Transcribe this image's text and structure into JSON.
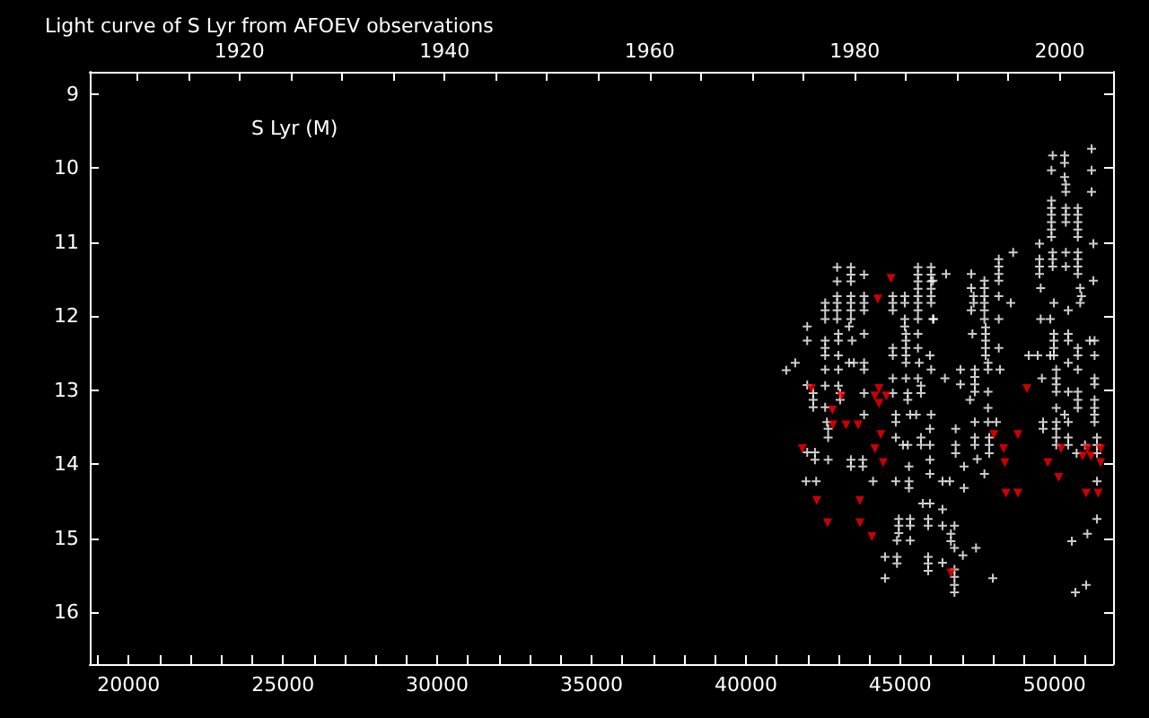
{
  "chart_data": {
    "type": "scatter",
    "title": "Light curve of S Lyr from AFOEV observations",
    "annotations": [
      "S Lyr (M)"
    ],
    "xlim": [
      18740,
      51900
    ],
    "ylim": [
      16.7,
      8.7
    ],
    "x2lim": [
      1905.4,
      2005.2
    ],
    "xticks": [
      {
        "value": 19000,
        "label": null
      },
      20000,
      {
        "value": 21000,
        "label": null
      },
      {
        "value": 22000,
        "label": null
      },
      {
        "value": 23000,
        "label": null
      },
      {
        "value": 24000,
        "label": null
      },
      25000,
      {
        "value": 26000,
        "label": null
      },
      {
        "value": 27000,
        "label": null
      },
      {
        "value": 28000,
        "label": null
      },
      {
        "value": 29000,
        "label": null
      },
      30000,
      {
        "value": 31000,
        "label": null
      },
      {
        "value": 32000,
        "label": null
      },
      {
        "value": 33000,
        "label": null
      },
      {
        "value": 34000,
        "label": null
      },
      35000,
      {
        "value": 36000,
        "label": null
      },
      {
        "value": 37000,
        "label": null
      },
      {
        "value": 38000,
        "label": null
      },
      {
        "value": 39000,
        "label": null
      },
      40000,
      {
        "value": 41000,
        "label": null
      },
      {
        "value": 42000,
        "label": null
      },
      {
        "value": 43000,
        "label": null
      },
      {
        "value": 44000,
        "label": null
      },
      45000,
      {
        "value": 46000,
        "label": null
      },
      {
        "value": 47000,
        "label": null
      },
      {
        "value": 48000,
        "label": null
      },
      {
        "value": 49000,
        "label": null
      },
      50000,
      {
        "value": 51000,
        "label": null
      }
    ],
    "x2ticks": [
      {
        "value": 1910,
        "label": null
      },
      {
        "value": 1915,
        "label": null
      },
      1920,
      {
        "value": 1925,
        "label": null
      },
      {
        "value": 1930,
        "label": null
      },
      {
        "value": 1935,
        "label": null
      },
      1940,
      {
        "value": 1945,
        "label": null
      },
      {
        "value": 1950,
        "label": null
      },
      {
        "value": 1955,
        "label": null
      },
      1960,
      {
        "value": 1965,
        "label": null
      },
      {
        "value": 1970,
        "label": null
      },
      {
        "value": 1975,
        "label": null
      },
      1980,
      {
        "value": 1985,
        "label": null
      },
      {
        "value": 1990,
        "label": null
      },
      {
        "value": 1995,
        "label": null
      },
      2000
    ],
    "yticks": [
      9,
      10,
      11,
      12,
      13,
      14,
      15,
      16
    ],
    "grid": false,
    "series": [
      {
        "color": "#ffffff",
        "marker": "cross",
        "x": [
          41309,
          41600,
          41988,
          41988,
          41988,
          42182,
          42182,
          42182,
          41988,
          41949,
          42279,
          42240,
          42240,
          42570,
          42570,
          42570,
          42570,
          42570,
          42570,
          42570,
          42570,
          42570,
          42628,
          42667,
          42667,
          42667,
          42958,
          42958,
          42958,
          42958,
          42958,
          42958,
          42997,
          42997,
          42997,
          42997,
          42997,
          43055,
          43055,
          43404,
          43404,
          43404,
          43404,
          43404,
          43404,
          43404,
          43404,
          43404,
          43346,
          43443,
          43346,
          43501,
          43831,
          43831,
          43831,
          43831,
          43831,
          43831,
          43831,
          43831,
          43831,
          43792,
          43792,
          44122,
          44762,
          44762,
          44762,
          44762,
          44762,
          44762,
          44762,
          44859,
          44859,
          44859,
          44859,
          45092,
          45247,
          45286,
          45286,
          45286,
          44510,
          44510,
          44898,
          44898,
          45150,
          45150,
          45150,
          45150,
          45189,
          45189,
          45189,
          45189,
          45189,
          45189,
          45247,
          45247,
          45325,
          45325,
          45325,
          45325,
          44956,
          44956,
          44956,
          44898,
          45577,
          45577,
          45577,
          45577,
          45577,
          45577,
          45577,
          45577,
          45577,
          45577,
          45577,
          45616,
          45674,
          45674,
          45519,
          45674,
          45674,
          45732,
          45965,
          45907,
          45907,
          45907,
          45907,
          45907,
          46004,
          46004,
          46004,
          46004,
          46004,
          46004,
          46004,
          46004,
          46081,
          45965,
          45965,
          45965,
          45965,
          45965,
          49942,
          50330,
          51203,
          51203,
          49903,
          50330,
          50330,
          50369,
          50369,
          51203,
          49903,
          49903,
          49903,
          49903,
          49903,
          49903,
          50369,
          50369,
          50369,
          50757,
          50757,
          50757,
          50757,
          50757,
          49515,
          49942,
          50369,
          50757,
          49515,
          49515,
          49515,
          49942,
          49942,
          50369,
          50757,
          50757,
          50757,
          51261,
          51261,
          48662,
          48196,
          48196,
          48196,
          48196,
          48196,
          48584,
          47730,
          47730,
          47730,
          47730,
          47730,
          47730,
          47304,
          47304,
          47381,
          47381,
          47304,
          46489,
          46062,
          46062,
          47769,
          47769,
          47769,
          47769,
          47769,
          48196,
          48196,
          47847,
          47342,
          46954,
          47420,
          47420,
          47420,
          47420,
          46954,
          46450,
          47847,
          48235,
          49554,
          49864,
          49554,
          49981,
          50446,
          50834,
          50834,
          50873,
          49981,
          49981,
          49981,
          49981,
          50446,
          50446,
          50757,
          50757,
          49166,
          49457,
          49864,
          50446,
          50757,
          50058,
          50058,
          50058,
          50058,
          50058,
          49593,
          50446,
          50757,
          50757,
          50330,
          50757,
          51145,
          51300,
          51300,
          51300,
          51300,
          51300,
          51300,
          51300,
          51300,
          47847,
          47847,
          47847,
          47265,
          47420,
          48118,
          46799,
          47420,
          47420,
          47886,
          47886,
          47886,
          47498,
          47071,
          47730,
          46799,
          46799,
          46372,
          46605,
          47071,
          46372,
          46372,
          46760,
          46644,
          46644,
          46760,
          47032,
          47459,
          46372,
          46760,
          46760,
          46760,
          46760,
          48002,
          49632,
          49632,
          50058,
          50058,
          50058,
          50058,
          50446,
          50446,
          50446,
          51378,
          51378,
          51378,
          51378,
          51378,
          50990,
          50718,
          51067,
          50563,
          51028,
          50679
        ],
        "values": [
          12.73,
          12.63,
          12.14,
          12.33,
          12.93,
          13.04,
          13.13,
          13.23,
          13.84,
          14.23,
          14.23,
          13.94,
          13.84,
          11.82,
          11.92,
          12.04,
          12.33,
          12.43,
          12.53,
          12.72,
          12.94,
          13.23,
          13.43,
          13.52,
          13.64,
          13.94,
          11.34,
          11.53,
          11.73,
          11.82,
          11.92,
          12.04,
          12.24,
          12.33,
          12.53,
          12.72,
          12.94,
          13.04,
          13.13,
          11.34,
          11.44,
          11.53,
          11.73,
          11.82,
          11.92,
          12.04,
          13.94,
          14.03,
          12.14,
          12.33,
          12.63,
          12.63,
          11.44,
          11.73,
          11.82,
          11.92,
          12.24,
          12.63,
          12.72,
          13.04,
          13.33,
          13.94,
          14.03,
          14.23,
          11.73,
          11.82,
          11.92,
          12.43,
          12.53,
          12.84,
          13.04,
          13.33,
          13.43,
          13.64,
          14.23,
          13.74,
          13.74,
          14.03,
          14.23,
          14.32,
          15.25,
          15.54,
          15.25,
          15.34,
          11.73,
          11.82,
          12.04,
          12.14,
          12.24,
          12.33,
          12.43,
          12.53,
          12.63,
          12.84,
          13.04,
          13.13,
          13.33,
          14.74,
          14.83,
          15.03,
          14.74,
          14.83,
          14.93,
          15.03,
          11.34,
          11.44,
          11.53,
          11.63,
          11.73,
          11.82,
          11.92,
          12.04,
          12.24,
          12.43,
          12.84,
          12.63,
          12.94,
          13.04,
          13.33,
          13.64,
          13.74,
          14.53,
          14.53,
          14.74,
          14.83,
          15.25,
          15.34,
          15.44,
          11.34,
          11.44,
          11.53,
          11.63,
          11.73,
          11.82,
          12.72,
          13.33,
          12.04,
          12.53,
          13.52,
          13.74,
          13.94,
          14.13,
          9.83,
          9.83,
          9.74,
          10.03,
          10.03,
          9.93,
          10.12,
          10.22,
          10.32,
          10.32,
          10.44,
          10.54,
          10.63,
          10.73,
          10.83,
          10.93,
          10.54,
          10.63,
          10.73,
          10.54,
          10.63,
          10.73,
          10.83,
          10.93,
          11.02,
          11.14,
          11.14,
          11.14,
          11.23,
          11.33,
          11.43,
          11.23,
          11.33,
          11.33,
          11.23,
          11.33,
          11.43,
          11.02,
          11.52,
          11.14,
          11.23,
          11.33,
          11.43,
          11.52,
          11.73,
          11.82,
          11.52,
          11.62,
          11.73,
          11.82,
          11.92,
          12.04,
          11.43,
          11.62,
          11.73,
          11.82,
          11.92,
          11.43,
          11.52,
          12.04,
          12.15,
          12.24,
          12.33,
          12.43,
          12.53,
          12.04,
          12.43,
          12.63,
          12.24,
          12.72,
          12.72,
          12.82,
          12.92,
          13.02,
          12.92,
          12.84,
          12.72,
          12.72,
          12.04,
          12.04,
          11.62,
          11.82,
          11.92,
          11.82,
          11.62,
          11.73,
          12.24,
          12.33,
          12.43,
          12.53,
          12.24,
          12.33,
          12.43,
          12.53,
          12.53,
          12.53,
          12.53,
          12.63,
          12.72,
          12.72,
          12.84,
          12.92,
          13.02,
          13.24,
          12.84,
          13.02,
          13.02,
          13.13,
          13.33,
          13.24,
          12.33,
          12.33,
          12.53,
          12.84,
          12.92,
          13.13,
          13.24,
          13.33,
          13.43,
          13.02,
          13.24,
          13.43,
          13.13,
          13.43,
          13.43,
          13.52,
          13.64,
          13.74,
          13.64,
          13.74,
          13.85,
          13.93,
          14.03,
          14.13,
          13.74,
          13.85,
          14.23,
          14.23,
          14.32,
          14.61,
          14.83,
          14.83,
          14.94,
          15.04,
          15.13,
          15.23,
          15.13,
          15.33,
          15.42,
          15.52,
          15.63,
          15.73,
          15.54,
          13.43,
          13.52,
          13.43,
          13.52,
          13.64,
          13.74,
          13.43,
          13.64,
          13.74,
          13.64,
          13.74,
          13.85,
          14.23,
          14.74,
          13.74,
          13.85,
          14.94,
          15.04,
          15.63,
          15.73
        ]
      },
      {
        "color": "#ff0000",
        "marker": "triangle",
        "x": [
          44704,
          44277,
          42124,
          42803,
          43094,
          44316,
          44180,
          44549,
          44316,
          42822,
          43249,
          43637,
          44374,
          41833,
          44180,
          44452,
          42298,
          43695,
          42648,
          43695,
          44083,
          49108,
          48041,
          48817,
          48351,
          48390,
          49787,
          50136,
          50214,
          51067,
          51494,
          50912,
          51184,
          51494,
          48429,
          48817,
          51028,
          51416,
          46644
        ],
        "values": [
          11.49,
          11.77,
          12.98,
          13.27,
          13.08,
          12.98,
          13.08,
          13.08,
          13.18,
          13.47,
          13.47,
          13.47,
          13.6,
          13.79,
          13.79,
          13.98,
          14.49,
          14.49,
          14.79,
          14.79,
          14.98,
          12.98,
          13.6,
          13.6,
          13.79,
          13.98,
          13.98,
          14.18,
          13.79,
          13.79,
          13.79,
          13.89,
          13.89,
          13.98,
          14.39,
          14.39,
          14.39,
          14.39,
          15.47
        ]
      }
    ]
  }
}
